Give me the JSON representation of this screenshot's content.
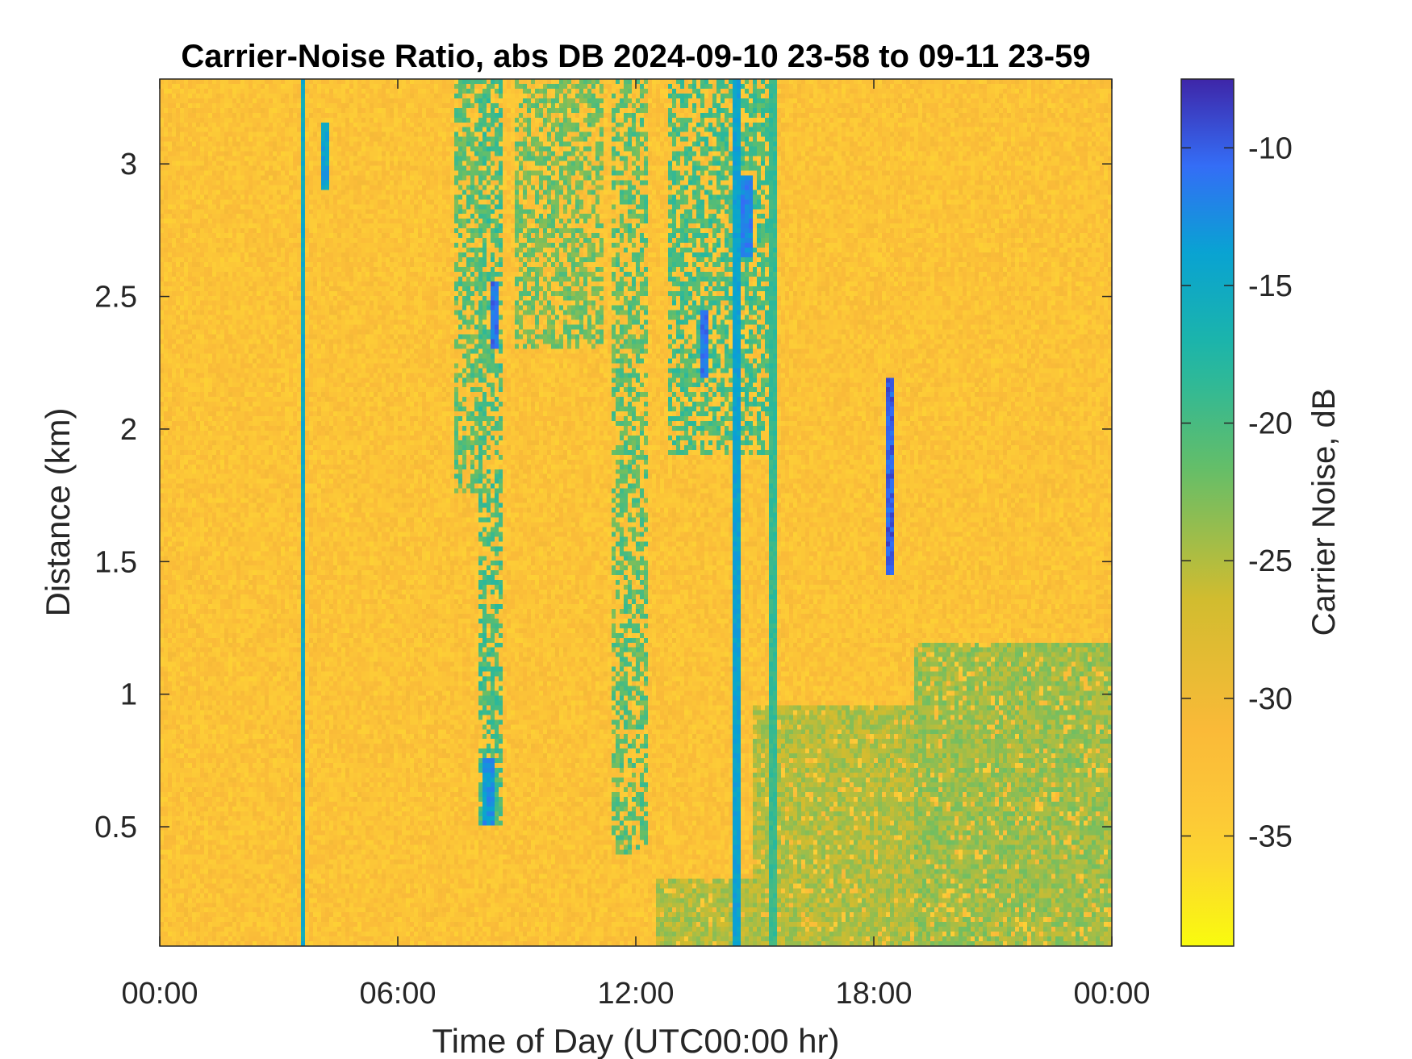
{
  "chart_data": {
    "type": "heatmap",
    "title": "Carrier-Noise Ratio, abs DB 2024-09-10 23-58 to 09-11 23-59",
    "xlabel": "Time of Day (UTC00:00 hr)",
    "ylabel": "Distance (km)",
    "xlim": [
      0,
      24
    ],
    "ylim": [
      0.05,
      3.32
    ],
    "x_ticks": [
      {
        "value": 0,
        "label": "00:00"
      },
      {
        "value": 6,
        "label": "06:00"
      },
      {
        "value": 12,
        "label": "12:00"
      },
      {
        "value": 18,
        "label": "18:00"
      },
      {
        "value": 24,
        "label": "00:00"
      }
    ],
    "y_ticks": [
      {
        "value": 0.5,
        "label": "0.5"
      },
      {
        "value": 1,
        "label": "1"
      },
      {
        "value": 1.5,
        "label": "1.5"
      },
      {
        "value": 2,
        "label": "2"
      },
      {
        "value": 2.5,
        "label": "2.5"
      },
      {
        "value": 3,
        "label": "3"
      }
    ],
    "colorbar": {
      "label": "Carrier Noise, dB",
      "clim": [
        -39,
        -7.5
      ],
      "colormap": "parula",
      "ticks": [
        {
          "value": -10,
          "label": "-10"
        },
        {
          "value": -15,
          "label": "-15"
        },
        {
          "value": -20,
          "label": "-20"
        },
        {
          "value": -25,
          "label": "-25"
        },
        {
          "value": -30,
          "label": "-30"
        },
        {
          "value": -35,
          "label": "-35"
        }
      ]
    },
    "background_value_db": -33,
    "features": [
      {
        "kind": "cloud-band",
        "time_hr": [
          7.4,
          8.2
        ],
        "distance_km": [
          1.75,
          3.32
        ],
        "value_db": -21
      },
      {
        "kind": "cloud-band",
        "time_hr": [
          8.0,
          8.6
        ],
        "distance_km": [
          0.5,
          3.32
        ],
        "value_db": -20
      },
      {
        "kind": "cloud-band",
        "time_hr": [
          9.0,
          11.2
        ],
        "distance_km": [
          2.3,
          3.32
        ],
        "value_db": -22
      },
      {
        "kind": "cloud-band",
        "time_hr": [
          11.4,
          12.3
        ],
        "distance_km": [
          0.4,
          3.32
        ],
        "value_db": -21
      },
      {
        "kind": "cloud-band",
        "time_hr": [
          12.8,
          15.4
        ],
        "distance_km": [
          1.9,
          3.32
        ],
        "value_db": -20
      },
      {
        "kind": "low-layer",
        "time_hr": [
          12.5,
          15.0
        ],
        "distance_km": [
          0.05,
          0.3
        ],
        "value_db": -25
      },
      {
        "kind": "low-layer",
        "time_hr": [
          15.0,
          19.0
        ],
        "distance_km": [
          0.05,
          0.95
        ],
        "value_db": -25
      },
      {
        "kind": "low-layer",
        "time_hr": [
          19.0,
          24.0
        ],
        "distance_km": [
          0.05,
          1.2
        ],
        "value_db": -24
      },
      {
        "kind": "vertical-line",
        "time_hr": 3.6,
        "value_db": -15
      },
      {
        "kind": "vertical-line",
        "time_hr": 14.55,
        "value_db": -14
      },
      {
        "kind": "vertical-line",
        "time_hr": 15.45,
        "value_db": -19
      },
      {
        "kind": "streak",
        "time_hr": 18.4,
        "distance_km": [
          1.45,
          2.2
        ],
        "value_db": -10
      },
      {
        "kind": "streak",
        "time_hr": 8.45,
        "distance_km": [
          2.3,
          2.55
        ],
        "value_db": -11
      },
      {
        "kind": "streak",
        "time_hr": 14.8,
        "distance_km": [
          2.65,
          2.95
        ],
        "value_db": -12
      },
      {
        "kind": "streak",
        "time_hr": 13.7,
        "distance_km": [
          2.2,
          2.45
        ],
        "value_db": -11
      },
      {
        "kind": "streak",
        "time_hr": 8.3,
        "distance_km": [
          0.5,
          0.75
        ],
        "value_db": -13
      },
      {
        "kind": "streak",
        "time_hr": 4.2,
        "distance_km": [
          2.9,
          3.15
        ],
        "value_db": -14
      }
    ]
  }
}
